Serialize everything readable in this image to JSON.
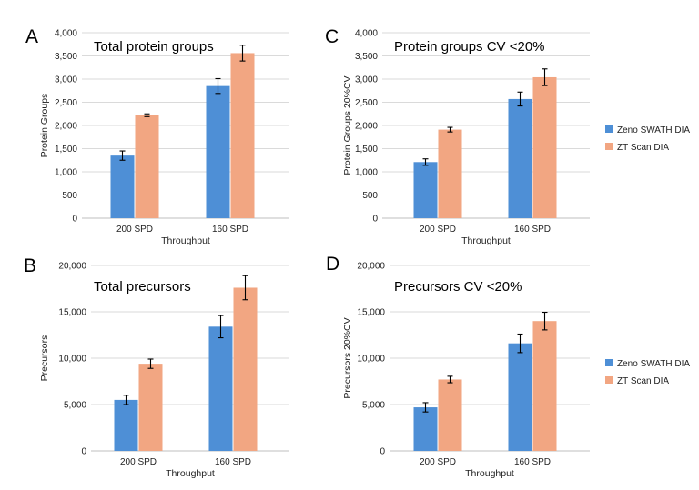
{
  "colors": {
    "zeno": "#4e8fd6",
    "zt": "#f2a682"
  },
  "chart_data": [
    {
      "panel": "A",
      "type": "bar",
      "title": "Total protein groups",
      "xlabel": "Throughput",
      "ylabel": "Protein Groups",
      "categories": [
        "200 SPD",
        "160 SPD"
      ],
      "ylim": [
        0,
        4000
      ],
      "yticks": [
        "0",
        "500",
        "1,000",
        "1,500",
        "2,000",
        "2,500",
        "3,000",
        "3,500",
        "4,000"
      ],
      "legend": false,
      "series": [
        {
          "name": "Zeno SWATH DIA",
          "values": [
            1350,
            2850
          ],
          "errors": [
            100,
            160
          ]
        },
        {
          "name": "ZT Scan DIA",
          "values": [
            2220,
            3560
          ],
          "errors": [
            30,
            170
          ]
        }
      ]
    },
    {
      "panel": "B",
      "type": "bar",
      "title": "Total precursors",
      "xlabel": "Throughput",
      "ylabel": "Precursors",
      "categories": [
        "200 SPD",
        "160 SPD"
      ],
      "ylim": [
        0,
        20000
      ],
      "yticks": [
        "0",
        "5,000",
        "10,000",
        "15,000",
        "20,000"
      ],
      "legend": false,
      "series": [
        {
          "name": "Zeno SWATH DIA",
          "values": [
            5500,
            13400
          ],
          "errors": [
            500,
            1200
          ]
        },
        {
          "name": "ZT Scan DIA",
          "values": [
            9400,
            17600
          ],
          "errors": [
            500,
            1300
          ]
        }
      ]
    },
    {
      "panel": "C",
      "type": "bar",
      "title": "Protein groups CV <20%",
      "xlabel": "Throughput",
      "ylabel": "Protein Groups 20%CV",
      "categories": [
        "200 SPD",
        "160 SPD"
      ],
      "ylim": [
        0,
        4000
      ],
      "yticks": [
        "0",
        "500",
        "1,000",
        "1,500",
        "2,000",
        "2,500",
        "3,000",
        "3,500",
        "4,000"
      ],
      "legend": true,
      "series": [
        {
          "name": "Zeno SWATH DIA",
          "values": [
            1210,
            2570
          ],
          "errors": [
            70,
            150
          ]
        },
        {
          "name": "ZT Scan DIA",
          "values": [
            1910,
            3040
          ],
          "errors": [
            50,
            180
          ]
        }
      ]
    },
    {
      "panel": "D",
      "type": "bar",
      "title": "Precursors CV <20%",
      "xlabel": "Throughput",
      "ylabel": "Precursors 20%CV",
      "categories": [
        "200 SPD",
        "160 SPD"
      ],
      "ylim": [
        0,
        20000
      ],
      "yticks": [
        "0",
        "5,000",
        "10,000",
        "15,000",
        "20,000"
      ],
      "legend": true,
      "series": [
        {
          "name": "Zeno SWATH DIA",
          "values": [
            4700,
            11600
          ],
          "errors": [
            500,
            1000
          ]
        },
        {
          "name": "ZT Scan DIA",
          "values": [
            7700,
            14000
          ],
          "errors": [
            350,
            950
          ]
        }
      ]
    }
  ]
}
